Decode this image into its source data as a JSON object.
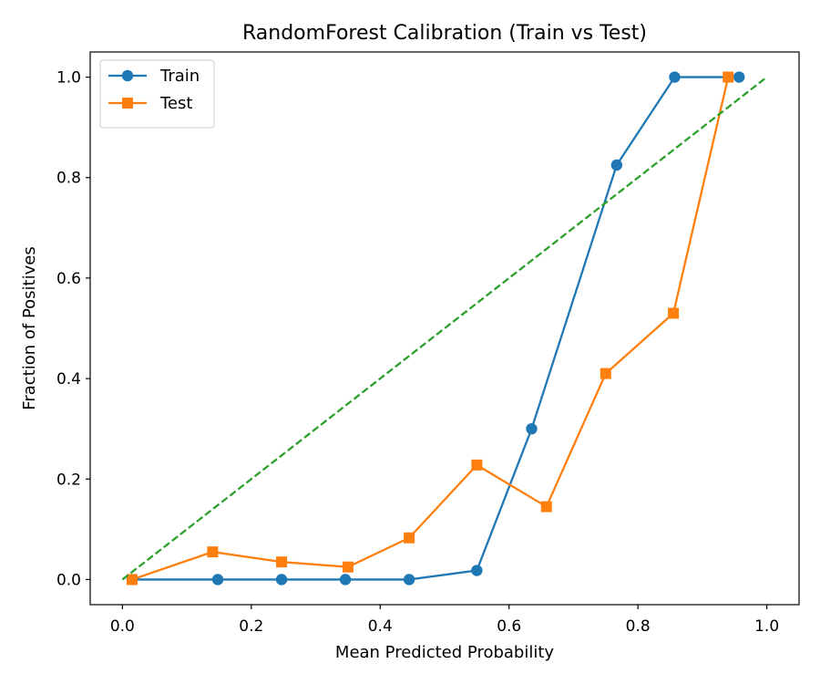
{
  "chart_data": {
    "type": "line",
    "title": "RandomForest Calibration (Train vs Test)",
    "xlabel": "Mean Predicted Probability",
    "ylabel": "Fraction of Positives",
    "xlim": [
      -0.05,
      1.05
    ],
    "ylim": [
      -0.05,
      1.05
    ],
    "xticks": [
      0.0,
      0.2,
      0.4,
      0.6,
      0.8,
      1.0
    ],
    "xtick_labels": [
      "0.0",
      "0.2",
      "0.4",
      "0.6",
      "0.8",
      "1.0"
    ],
    "yticks": [
      0.0,
      0.2,
      0.4,
      0.6,
      0.8,
      1.0
    ],
    "ytick_labels": [
      "0.0",
      "0.2",
      "0.4",
      "0.6",
      "0.8",
      "1.0"
    ],
    "grid": false,
    "legend_position": "top-left",
    "series": [
      {
        "name": "Train",
        "color": "#1f77b4",
        "marker": "circle",
        "x": [
          0.015,
          0.148,
          0.247,
          0.346,
          0.445,
          0.55,
          0.635,
          0.767,
          0.857,
          0.957
        ],
        "y": [
          0.0,
          0.0,
          0.0,
          0.0,
          0.0,
          0.018,
          0.3,
          0.825,
          1.0,
          1.0
        ]
      },
      {
        "name": "Test",
        "color": "#ff7f0e",
        "marker": "square",
        "x": [
          0.015,
          0.14,
          0.247,
          0.35,
          0.445,
          0.55,
          0.658,
          0.75,
          0.855,
          0.94
        ],
        "y": [
          0.0,
          0.055,
          0.035,
          0.025,
          0.083,
          0.228,
          0.145,
          0.41,
          0.53,
          1.0
        ]
      },
      {
        "color": "#2ca02c",
        "style": "dashed",
        "marker": "none",
        "x": [
          0.0,
          1.0
        ],
        "y": [
          0.0,
          1.0
        ]
      }
    ]
  }
}
